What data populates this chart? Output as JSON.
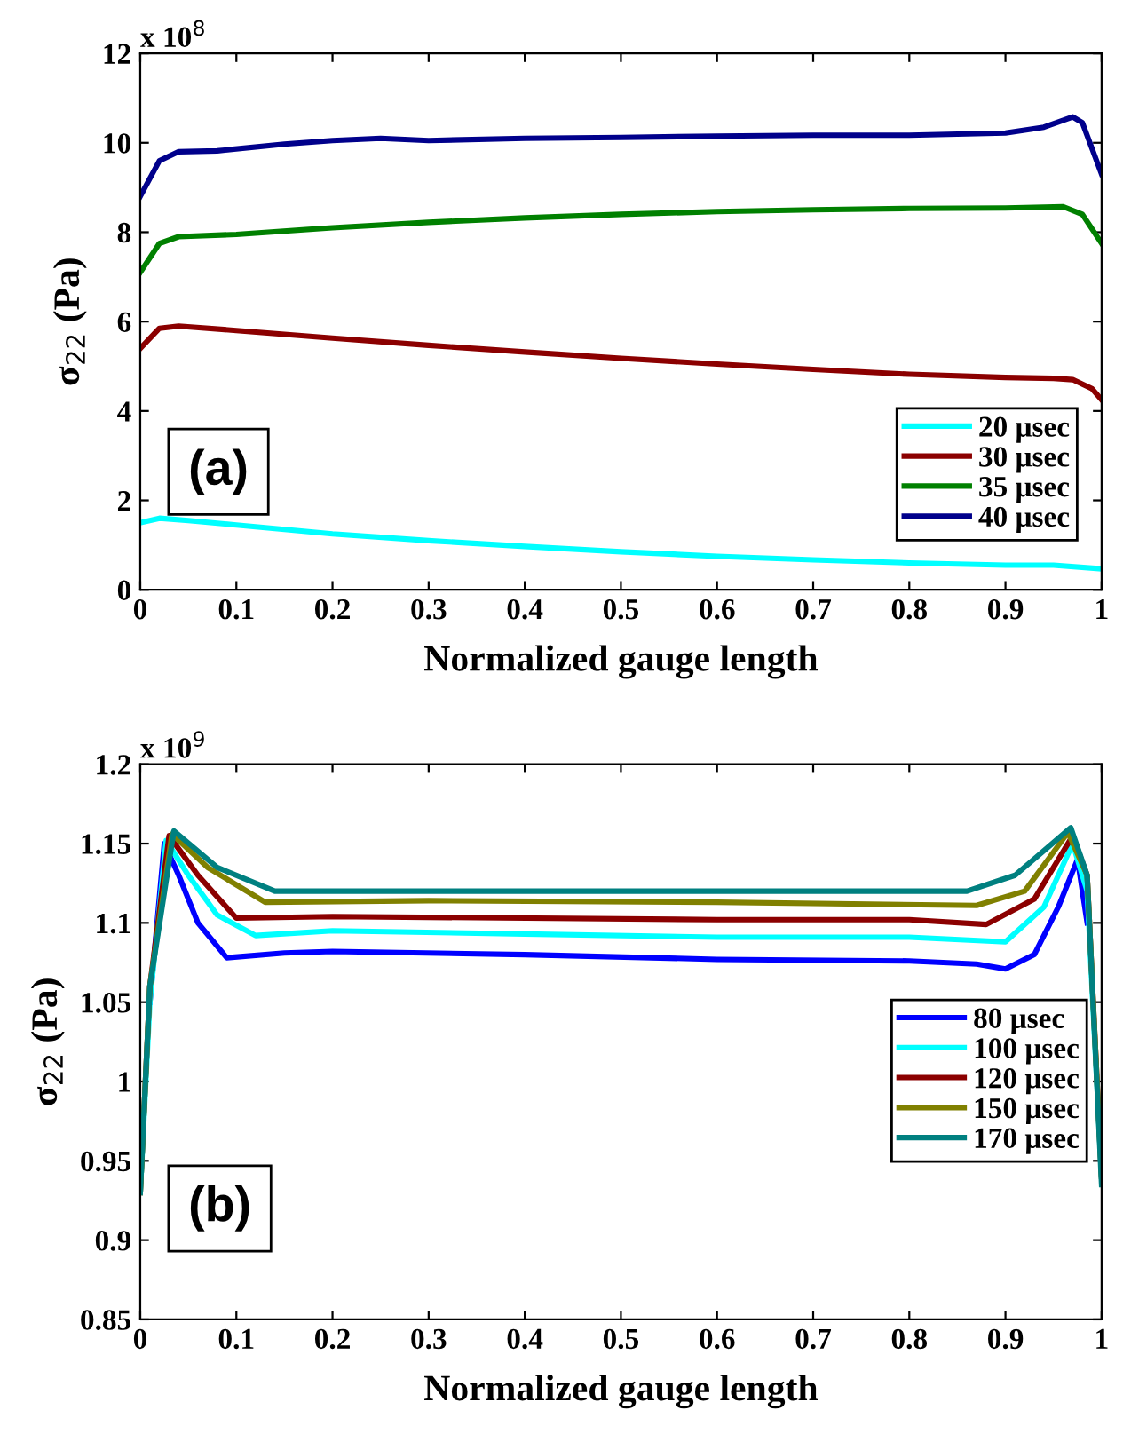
{
  "chart_data": [
    {
      "type": "line",
      "xlabel": "Normalized gauge length",
      "ylabel": "σ$_{22}$ (Pa)",
      "annotations": [
        "x 10$^{8}$",
        "(a)"
      ],
      "xlim": [
        0,
        1
      ],
      "ylim": [
        0,
        12
      ],
      "xticks": [
        0,
        0.1,
        0.2,
        0.3,
        0.4,
        0.5,
        0.6,
        0.7,
        0.8,
        0.9,
        1
      ],
      "yticks": [
        0,
        2,
        4,
        6,
        8,
        10,
        12
      ],
      "grid": false,
      "legend": "bottom right",
      "line_style": "solid",
      "marker": "none",
      "series": [
        {
          "name": "20 μsec",
          "color": "#00ffff",
          "x": [
            0,
            0.02,
            0.05,
            0.1,
            0.2,
            0.3,
            0.4,
            0.5,
            0.6,
            0.7,
            0.8,
            0.9,
            0.95,
            1
          ],
          "values": [
            1.5,
            1.6,
            1.55,
            1.45,
            1.25,
            1.1,
            0.97,
            0.85,
            0.75,
            0.67,
            0.6,
            0.55,
            0.55,
            0.47
          ]
        },
        {
          "name": "30 μsec",
          "color": "#8b0000",
          "x": [
            0,
            0.02,
            0.04,
            0.1,
            0.2,
            0.3,
            0.4,
            0.5,
            0.6,
            0.7,
            0.8,
            0.9,
            0.95,
            0.97,
            0.99,
            1
          ],
          "values": [
            5.4,
            5.85,
            5.9,
            5.8,
            5.63,
            5.47,
            5.32,
            5.18,
            5.05,
            4.93,
            4.82,
            4.75,
            4.73,
            4.7,
            4.5,
            4.25
          ]
        },
        {
          "name": "35 μsec",
          "color": "#008000",
          "x": [
            0,
            0.02,
            0.04,
            0.1,
            0.2,
            0.3,
            0.4,
            0.5,
            0.6,
            0.7,
            0.8,
            0.9,
            0.96,
            0.98,
            1
          ],
          "values": [
            7.1,
            7.75,
            7.9,
            7.95,
            8.1,
            8.22,
            8.32,
            8.4,
            8.46,
            8.5,
            8.53,
            8.54,
            8.57,
            8.4,
            7.75
          ]
        },
        {
          "name": "40 μsec",
          "color": "#00008b",
          "x": [
            0,
            0.02,
            0.04,
            0.08,
            0.15,
            0.2,
            0.25,
            0.3,
            0.4,
            0.5,
            0.6,
            0.7,
            0.8,
            0.9,
            0.94,
            0.97,
            0.98,
            1
          ],
          "values": [
            8.8,
            9.6,
            9.8,
            9.82,
            9.97,
            10.05,
            10.1,
            10.05,
            10.1,
            10.12,
            10.15,
            10.17,
            10.17,
            10.22,
            10.35,
            10.58,
            10.45,
            9.3
          ]
        }
      ]
    },
    {
      "type": "line",
      "xlabel": "Normalized gauge length",
      "ylabel": "σ$_{22}$ (Pa)",
      "annotations": [
        "x 10$^{9}$",
        "(b)"
      ],
      "xlim": [
        0,
        1
      ],
      "ylim": [
        0.85,
        1.2
      ],
      "xticks": [
        0,
        0.1,
        0.2,
        0.3,
        0.4,
        0.5,
        0.6,
        0.7,
        0.8,
        0.9,
        1
      ],
      "yticks": [
        0.85,
        0.9,
        0.95,
        1,
        1.05,
        1.1,
        1.15,
        1.2
      ],
      "grid": false,
      "legend": "right",
      "line_style": "solid",
      "marker": "none",
      "series": [
        {
          "name": "80 μsec",
          "color": "#0000ff",
          "x": [
            0.01,
            0.025,
            0.04,
            0.06,
            0.09,
            0.15,
            0.2,
            0.4,
            0.6,
            0.8,
            0.87,
            0.9,
            0.93,
            0.955,
            0.975,
            0.985
          ],
          "values": [
            1.05,
            1.15,
            1.13,
            1.1,
            1.078,
            1.081,
            1.082,
            1.08,
            1.077,
            1.076,
            1.074,
            1.071,
            1.08,
            1.11,
            1.14,
            1.1
          ]
        },
        {
          "name": "100 μsec",
          "color": "#00ffff",
          "x": [
            0,
            0.01,
            0.027,
            0.05,
            0.08,
            0.12,
            0.2,
            0.4,
            0.6,
            0.8,
            0.9,
            0.94,
            0.97,
            0.985,
            1
          ],
          "values": [
            0.93,
            1.05,
            1.152,
            1.13,
            1.105,
            1.092,
            1.095,
            1.093,
            1.091,
            1.091,
            1.088,
            1.11,
            1.15,
            1.12,
            0.94
          ]
        },
        {
          "name": "120 μsec",
          "color": "#8b0000",
          "x": [
            0,
            0.01,
            0.03,
            0.06,
            0.1,
            0.2,
            0.6,
            0.8,
            0.88,
            0.93,
            0.97,
            0.985,
            1
          ],
          "values": [
            0.93,
            1.06,
            1.155,
            1.13,
            1.103,
            1.104,
            1.102,
            1.102,
            1.099,
            1.115,
            1.155,
            1.13,
            0.94
          ]
        },
        {
          "name": "150 μsec",
          "color": "#808000",
          "x": [
            0,
            0.01,
            0.033,
            0.07,
            0.13,
            0.3,
            0.6,
            0.87,
            0.92,
            0.965,
            0.985,
            1
          ],
          "values": [
            0.93,
            1.06,
            1.156,
            1.135,
            1.113,
            1.114,
            1.113,
            1.111,
            1.12,
            1.157,
            1.13,
            0.94
          ]
        },
        {
          "name": "170 μsec",
          "color": "#008080",
          "x": [
            0,
            0.01,
            0.035,
            0.08,
            0.14,
            0.3,
            0.6,
            0.86,
            0.91,
            0.968,
            0.985,
            1
          ],
          "values": [
            0.93,
            1.06,
            1.158,
            1.135,
            1.12,
            1.12,
            1.12,
            1.12,
            1.13,
            1.16,
            1.13,
            0.935
          ]
        }
      ]
    }
  ]
}
